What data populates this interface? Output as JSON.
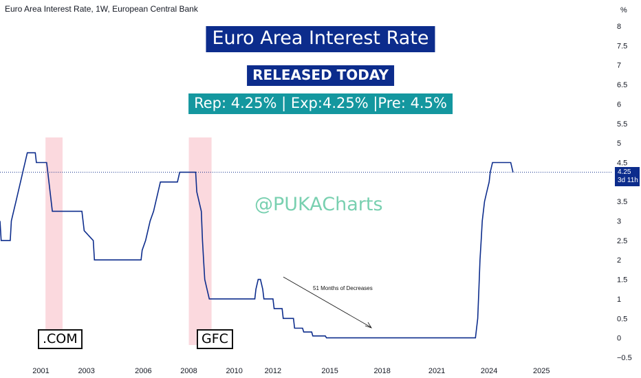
{
  "source_title": "Euro Area Interest Rate, 1W, European Central Bank",
  "banners": {
    "title": "Euro Area Interest Rate",
    "released": "RELEASED TODAY",
    "values": "Rep: 4.25% | Exp:4.25% |Pre: 4.5%"
  },
  "watermark": "@PUKACharts",
  "tags": {
    "dotcom": ".COM",
    "gfc": "GFC"
  },
  "annotation": "51 Months of Decreases",
  "badge": {
    "value": "4.25",
    "countdown": "3d 11h"
  },
  "colors": {
    "line": "#0c2c8c",
    "recession": "#fbd9de",
    "banner": "#0c2c8c",
    "banner_teal": "#14979f",
    "watermark": "#79d0b0"
  },
  "chart_data": {
    "type": "line",
    "title": "Euro Area Interest Rate",
    "ylabel": "%",
    "ylim": [
      -0.5,
      8
    ],
    "xlim": [
      2000.0,
      2026.0
    ],
    "y_ticks": [
      "8",
      "7.5",
      "7",
      "6.5",
      "6",
      "5.5",
      "5",
      "4.5",
      "4",
      "3.5",
      "3",
      "2.5",
      "2",
      "1.5",
      "1",
      "0.5",
      "0",
      "−0.5"
    ],
    "y_tick_values": [
      8,
      7.5,
      7,
      6.5,
      6,
      5.5,
      5,
      4.5,
      4,
      3.5,
      3,
      2.5,
      2,
      1.5,
      1,
      0.5,
      0,
      -0.5
    ],
    "x_ticks": [
      {
        "label": "2001",
        "value": 2001.8
      },
      {
        "label": "2003",
        "value": 2003.8
      },
      {
        "label": "2006",
        "value": 2006.3
      },
      {
        "label": "2008",
        "value": 2008.3
      },
      {
        "label": "2010",
        "value": 2010.3
      },
      {
        "label": "2012",
        "value": 2012.0
      },
      {
        "label": "2015",
        "value": 2014.5
      },
      {
        "label": "2018",
        "value": 2016.8
      },
      {
        "label": "2021",
        "value": 2019.2
      },
      {
        "label": "2024",
        "value": 2021.5
      },
      {
        "label": "2025",
        "value": 2023.8
      }
    ],
    "shaded_regions": [
      {
        "x0": 2002.0,
        "x1": 2002.75
      },
      {
        "x0": 2008.3,
        "x1": 2009.3
      }
    ],
    "current_value": 4.25,
    "series": [
      {
        "x": [
          2000.0,
          2000.05,
          2000.45,
          2000.5,
          2000.6,
          2000.7,
          2000.8,
          2000.9,
          2001.0,
          2001.1,
          2001.2,
          2001.3,
          2001.45,
          2001.55,
          2001.6,
          2002.05,
          2002.1,
          2002.2,
          2002.3,
          2002.5,
          2002.6,
          2003.6,
          2003.7,
          2004.1,
          2004.15,
          2006.2,
          2006.25,
          2006.4,
          2006.5,
          2006.6,
          2006.75,
          2006.85,
          2006.95,
          2007.05,
          2007.15,
          2007.35,
          2007.45,
          2007.6,
          2007.7,
          2007.8,
          2007.9,
          2008.6,
          2008.65,
          2008.85,
          2008.9,
          2008.95,
          2009.0,
          2009.1,
          2009.2,
          2009.3,
          2009.35,
          2009.45,
          2011.2,
          2011.25,
          2011.35,
          2011.45,
          2011.55,
          2011.6,
          2011.7,
          2011.75,
          2012.0,
          2012.05,
          2012.4,
          2012.45,
          2012.9,
          2012.95,
          2013.3,
          2013.35,
          2013.7,
          2013.75,
          2014.0,
          2014.05,
          2014.3,
          2014.35,
          2015.4,
          2015.45,
          2020.9,
          2021.0,
          2021.05,
          2021.1,
          2021.15,
          2021.2,
          2021.3,
          2021.4,
          2021.5,
          2021.55,
          2021.65,
          2021.8,
          2022.35,
          2022.45,
          2022.55
        ],
        "y": [
          3.0,
          2.5,
          2.5,
          3.0,
          3.25,
          3.5,
          3.75,
          4.0,
          4.25,
          4.5,
          4.75,
          4.75,
          4.75,
          4.75,
          4.5,
          4.5,
          4.25,
          3.75,
          3.25,
          3.25,
          3.25,
          3.25,
          2.75,
          2.5,
          2.0,
          2.0,
          2.25,
          2.5,
          2.75,
          3.0,
          3.25,
          3.5,
          3.75,
          4.0,
          4.0,
          4.0,
          4.0,
          4.0,
          4.0,
          4.0,
          4.25,
          4.25,
          3.75,
          3.25,
          2.5,
          2.0,
          1.5,
          1.25,
          1.0,
          1.0,
          1.0,
          1.0,
          1.0,
          1.25,
          1.5,
          1.5,
          1.25,
          1.0,
          1.0,
          1.0,
          1.0,
          0.75,
          0.75,
          0.5,
          0.5,
          0.25,
          0.25,
          0.15,
          0.15,
          0.05,
          0.05,
          0.05,
          0.05,
          0.0,
          0.0,
          0.0,
          0.0,
          0.5,
          1.25,
          2.0,
          2.5,
          3.0,
          3.5,
          3.75,
          4.0,
          4.25,
          4.5,
          4.5,
          4.5,
          4.5,
          4.25
        ]
      }
    ]
  }
}
